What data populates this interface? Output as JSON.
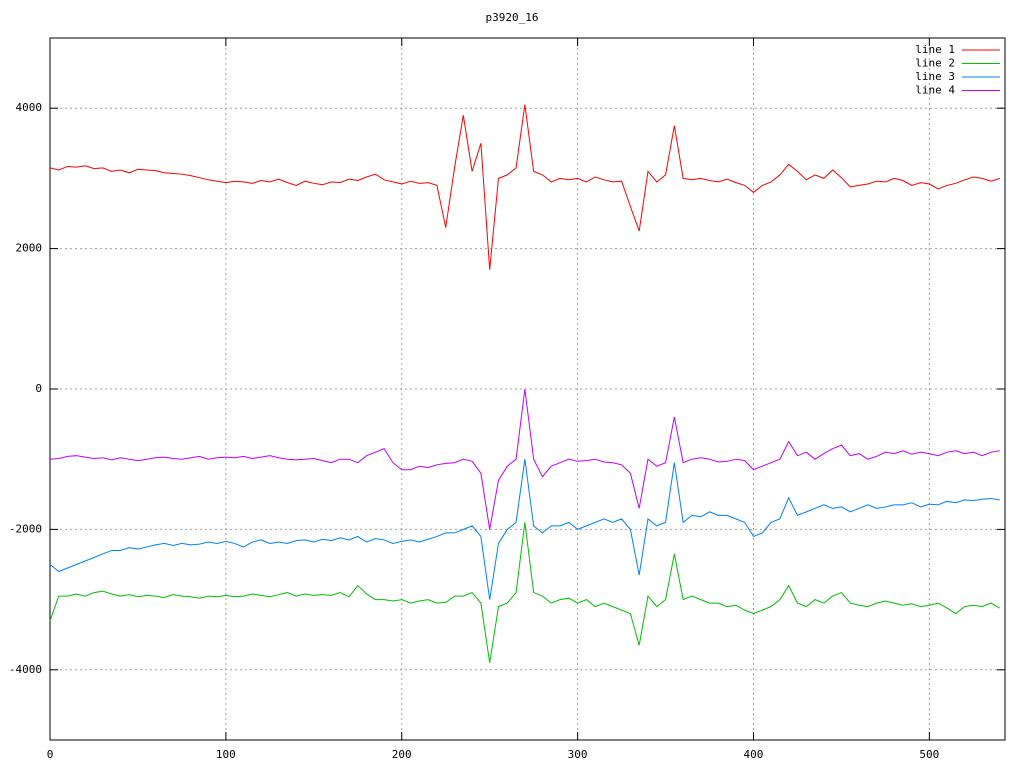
{
  "chart_data": {
    "type": "line",
    "title": "p3920_16",
    "x": [
      0,
      5,
      10,
      15,
      20,
      25,
      30,
      35,
      40,
      45,
      50,
      55,
      60,
      65,
      70,
      75,
      80,
      85,
      90,
      95,
      100,
      105,
      110,
      115,
      120,
      125,
      130,
      135,
      140,
      145,
      150,
      155,
      160,
      165,
      170,
      175,
      180,
      185,
      190,
      195,
      200,
      205,
      210,
      215,
      220,
      225,
      230,
      235,
      240,
      245,
      250,
      255,
      260,
      265,
      270,
      275,
      280,
      285,
      290,
      295,
      300,
      305,
      310,
      315,
      320,
      325,
      330,
      335,
      340,
      345,
      350,
      355,
      360,
      365,
      370,
      375,
      380,
      385,
      390,
      395,
      400,
      405,
      410,
      415,
      420,
      425,
      430,
      435,
      440,
      445,
      450,
      455,
      460,
      465,
      470,
      475,
      480,
      485,
      490,
      495,
      500,
      505,
      510,
      515,
      520,
      525,
      530,
      535,
      540
    ],
    "series": [
      {
        "name": "line 1",
        "color": "#ff0000",
        "values": [
          3150,
          3120,
          3170,
          3160,
          3180,
          3140,
          3150,
          3100,
          3120,
          3080,
          3130,
          3120,
          3110,
          3080,
          3070,
          3060,
          3040,
          3010,
          2980,
          2960,
          2940,
          2960,
          2950,
          2930,
          2970,
          2950,
          2990,
          2940,
          2900,
          2960,
          2930,
          2910,
          2950,
          2940,
          2990,
          2970,
          3020,
          3060,
          2980,
          2950,
          2920,
          2960,
          2930,
          2940,
          2900,
          2300,
          3150,
          3900,
          3100,
          3500,
          1700,
          3000,
          3050,
          3150,
          4050,
          3100,
          3050,
          2950,
          3000,
          2980,
          3000,
          2950,
          3020,
          2980,
          2950,
          2960,
          2600,
          2250,
          3100,
          2950,
          3050,
          3750,
          3000,
          2980,
          3000,
          2970,
          2950,
          2990,
          2940,
          2900,
          2800,
          2900,
          2950,
          3050,
          3200,
          3100,
          2980,
          3050,
          3000,
          3120,
          3010,
          2880,
          2900,
          2920,
          2960,
          2950,
          3000,
          2970,
          2900,
          2940,
          2920,
          2850,
          2900,
          2930,
          2980,
          3020,
          3000,
          2960,
          3000
        ]
      },
      {
        "name": "line 2",
        "color": "#00c000",
        "values": [
          -3300,
          -2950,
          -2950,
          -2920,
          -2950,
          -2900,
          -2880,
          -2920,
          -2950,
          -2930,
          -2960,
          -2940,
          -2950,
          -2970,
          -2930,
          -2950,
          -2960,
          -2980,
          -2950,
          -2960,
          -2940,
          -2960,
          -2950,
          -2920,
          -2940,
          -2960,
          -2930,
          -2900,
          -2950,
          -2920,
          -2940,
          -2930,
          -2940,
          -2900,
          -2960,
          -2800,
          -2920,
          -3000,
          -3000,
          -3020,
          -3000,
          -3050,
          -3020,
          -3000,
          -3050,
          -3040,
          -2950,
          -2950,
          -2900,
          -3050,
          -3900,
          -3100,
          -3050,
          -2900,
          -1900,
          -2900,
          -2950,
          -3050,
          -3000,
          -2980,
          -3050,
          -3000,
          -3100,
          -3050,
          -3100,
          -3150,
          -3200,
          -3650,
          -2950,
          -3100,
          -3000,
          -2350,
          -3000,
          -2950,
          -3000,
          -3050,
          -3050,
          -3100,
          -3080,
          -3150,
          -3200,
          -3150,
          -3100,
          -3000,
          -2800,
          -3050,
          -3100,
          -3000,
          -3050,
          -2950,
          -2900,
          -3050,
          -3080,
          -3100,
          -3050,
          -3020,
          -3050,
          -3080,
          -3060,
          -3100,
          -3080,
          -3050,
          -3120,
          -3200,
          -3100,
          -3080,
          -3100,
          -3050,
          -3120
        ]
      },
      {
        "name": "line 3",
        "color": "#0080ff",
        "values": [
          -2500,
          -2600,
          -2550,
          -2500,
          -2450,
          -2400,
          -2350,
          -2300,
          -2300,
          -2260,
          -2280,
          -2250,
          -2220,
          -2200,
          -2230,
          -2200,
          -2220,
          -2210,
          -2180,
          -2200,
          -2170,
          -2200,
          -2250,
          -2180,
          -2150,
          -2200,
          -2180,
          -2200,
          -2160,
          -2150,
          -2180,
          -2140,
          -2160,
          -2120,
          -2150,
          -2100,
          -2180,
          -2130,
          -2150,
          -2200,
          -2170,
          -2150,
          -2180,
          -2140,
          -2100,
          -2050,
          -2050,
          -2000,
          -1950,
          -2100,
          -3000,
          -2200,
          -2000,
          -1900,
          -1000,
          -1950,
          -2050,
          -1950,
          -1950,
          -1900,
          -2000,
          -1950,
          -1900,
          -1850,
          -1900,
          -1850,
          -2000,
          -2650,
          -1850,
          -1950,
          -1900,
          -1050,
          -1900,
          -1800,
          -1820,
          -1750,
          -1800,
          -1800,
          -1850,
          -1900,
          -2100,
          -2050,
          -1900,
          -1850,
          -1550,
          -1800,
          -1750,
          -1700,
          -1650,
          -1700,
          -1680,
          -1750,
          -1700,
          -1650,
          -1700,
          -1680,
          -1650,
          -1650,
          -1620,
          -1680,
          -1640,
          -1650,
          -1600,
          -1620,
          -1580,
          -1590,
          -1570,
          -1560,
          -1580
        ]
      },
      {
        "name": "line 4",
        "color": "#c000ff",
        "values": [
          -1000,
          -990,
          -960,
          -950,
          -970,
          -990,
          -980,
          -1010,
          -980,
          -1000,
          -1020,
          -1000,
          -980,
          -970,
          -990,
          -1000,
          -980,
          -960,
          -1000,
          -980,
          -970,
          -980,
          -960,
          -990,
          -970,
          -950,
          -980,
          -1000,
          -1010,
          -1000,
          -990,
          -1020,
          -1050,
          -1000,
          -1000,
          -1050,
          -950,
          -900,
          -850,
          -1050,
          -1150,
          -1150,
          -1100,
          -1120,
          -1080,
          -1060,
          -1050,
          -1000,
          -1030,
          -1200,
          -2000,
          -1300,
          -1100,
          -1000,
          0,
          -1000,
          -1250,
          -1100,
          -1050,
          -1000,
          -1030,
          -1020,
          -1000,
          -1040,
          -1050,
          -1080,
          -1200,
          -1700,
          -1000,
          -1100,
          -1050,
          -400,
          -1050,
          -1000,
          -980,
          -1000,
          -1040,
          -1030,
          -1000,
          -1020,
          -1150,
          -1100,
          -1050,
          -1000,
          -750,
          -950,
          -900,
          -1000,
          -920,
          -850,
          -800,
          -950,
          -920,
          -1000,
          -960,
          -900,
          -920,
          -880,
          -930,
          -900,
          -920,
          -950,
          -900,
          -880,
          -920,
          -900,
          -950,
          -900,
          -880
        ]
      }
    ],
    "xlim": [
      0,
      543
    ],
    "xticks": [
      0,
      100,
      200,
      300,
      400,
      500
    ],
    "ylim": [
      -5000,
      5000
    ],
    "yticks": [
      -4000,
      -2000,
      0,
      2000,
      4000
    ],
    "grid": true,
    "legend": "top-right"
  }
}
